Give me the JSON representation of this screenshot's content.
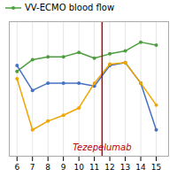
{
  "chart_data": {
    "type": "line",
    "series": [
      {
        "name": "VV-ECMO blood flow",
        "color": "#4d9e3f",
        "values": [
          0.68,
          0.76,
          0.78,
          0.78,
          0.81,
          0.77,
          0.8,
          0.82,
          0.88,
          0.86
        ]
      },
      {
        "color": "#4472c4",
        "values": [
          0.72,
          0.55,
          0.6,
          0.6,
          0.6,
          0.58,
          0.72,
          0.74,
          0.6,
          0.28
        ]
      },
      {
        "color": "#f0a500",
        "values": [
          0.63,
          0.28,
          0.34,
          0.38,
          0.43,
          0.6,
          0.73,
          0.74,
          0.6,
          0.45
        ]
      }
    ],
    "x": [
      6,
      7,
      8,
      9,
      10,
      11,
      12,
      13,
      14,
      15
    ],
    "xlim": [
      5.5,
      15.8
    ],
    "xticks": [
      6,
      7,
      8,
      9,
      10,
      11,
      12,
      13,
      14,
      15
    ],
    "ylim": [
      0.1,
      1.02
    ],
    "yticks": [],
    "tick_labels": "x",
    "grid": true,
    "legend": "upper left",
    "marker": "circle",
    "vline": {
      "x": 11.5,
      "color": "#c00000"
    },
    "annotations": [
      {
        "text": "Tezepelumab",
        "x": 11.5,
        "y": 0.14,
        "color": "#c00000"
      }
    ]
  }
}
